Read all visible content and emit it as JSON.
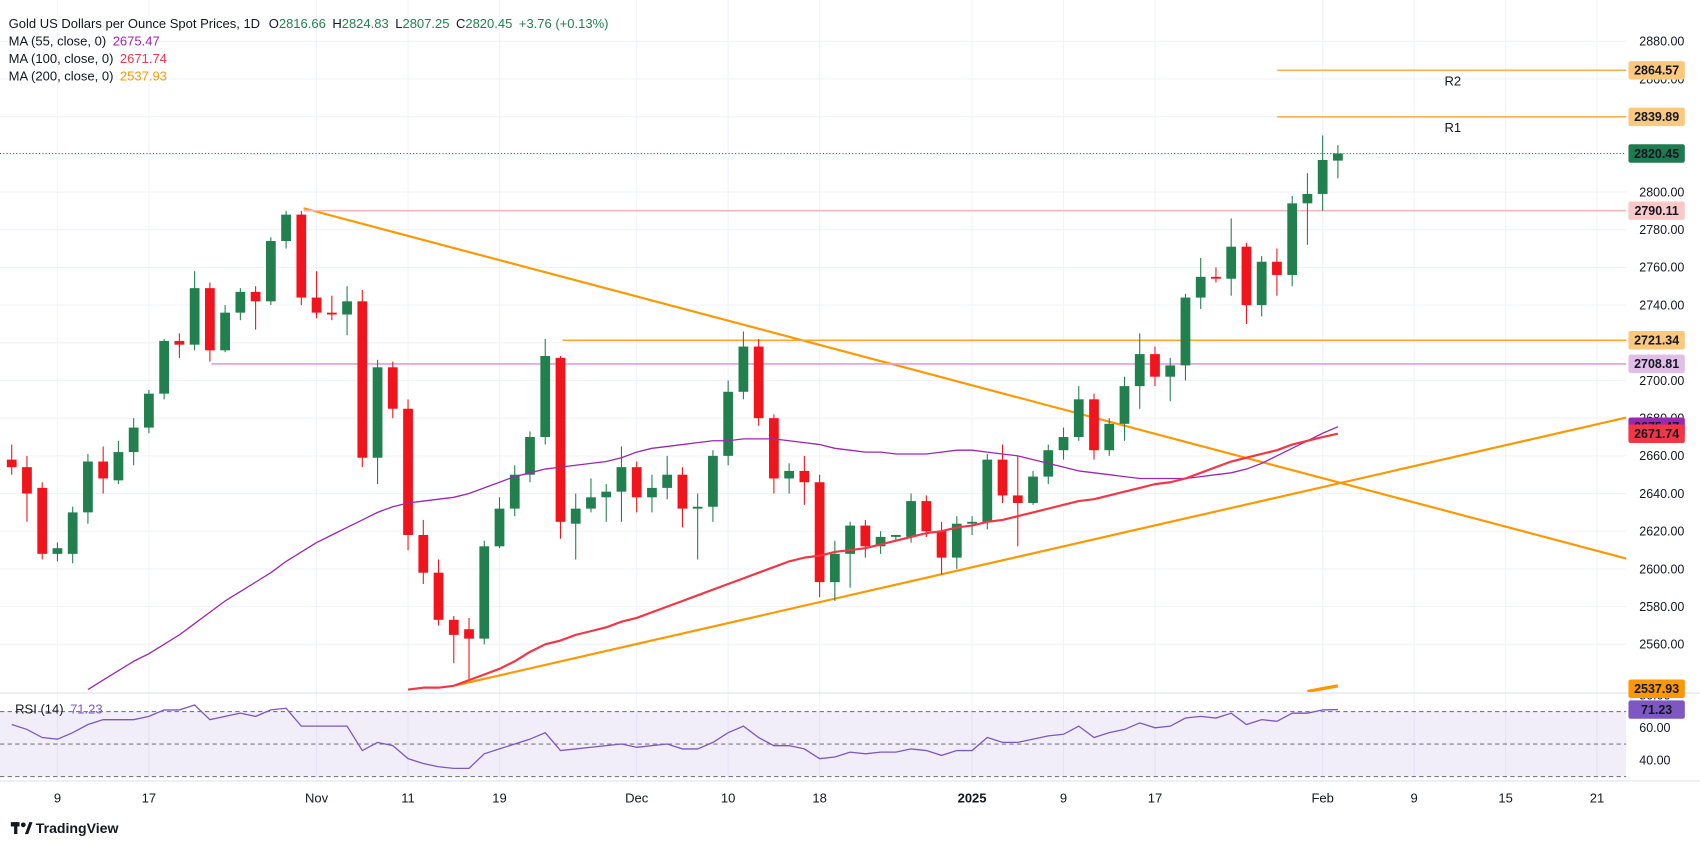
{
  "chart_data": {
    "type": "candlestick",
    "title": "Gold US Dollars per Ounce Spot Prices, 1D",
    "ohlc_labels": [
      "O",
      "H",
      "L",
      "C"
    ],
    "change": "+3.76 (+0.13%)",
    "up_color": "#22804f",
    "down_color": "#f0141c",
    "categories": [
      null,
      null,
      null,
      "9",
      null,
      null,
      null,
      null,
      null,
      "17",
      null,
      null,
      null,
      null,
      null,
      null,
      null,
      null,
      null,
      null,
      "Nov",
      null,
      null,
      null,
      null,
      null,
      "11",
      null,
      null,
      null,
      null,
      null,
      "19",
      null,
      null,
      null,
      null,
      null,
      null,
      null,
      null,
      "Dec",
      null,
      null,
      null,
      null,
      null,
      "10",
      null,
      null,
      null,
      null,
      null,
      "18",
      null,
      null,
      null,
      null,
      null,
      null,
      null,
      null,
      null,
      "2025",
      null,
      null,
      null,
      null,
      null,
      "9",
      null,
      null,
      null,
      null,
      null,
      "17",
      null,
      null,
      null,
      null,
      null,
      null,
      null,
      null,
      null,
      null,
      "Feb",
      null,
      null,
      null,
      null,
      null,
      "9",
      null,
      null,
      null,
      null,
      null,
      "15",
      null,
      null,
      null,
      null,
      null,
      "21",
      null
    ],
    "candles": {
      "open": [
        2658,
        2654,
        2643,
        2608,
        2608,
        2630,
        2657,
        2647,
        2662,
        2675,
        2693,
        2721,
        2719,
        2749,
        2716,
        2736,
        2747,
        2742,
        2774,
        2788,
        2744,
        2736,
        2735,
        2742,
        2659,
        2707,
        2685,
        2618,
        2598,
        2573,
        2568,
        2563,
        2612,
        2632,
        2650,
        2670,
        2712,
        2624,
        2632,
        2638,
        2641,
        2654,
        2638,
        2643,
        2650,
        2632,
        2633,
        2660,
        2694,
        2718,
        2680,
        2648,
        2652,
        2646,
        2593,
        2608,
        2623,
        2612,
        2617,
        2617,
        2636,
        2620,
        2606,
        2624,
        2625,
        2658,
        2639,
        2635,
        2649,
        2663,
        2670,
        2690,
        2663,
        2677,
        2697,
        2714,
        2702,
        2708,
        2744,
        2755,
        2754,
        2771,
        2740,
        2763,
        2756,
        2794,
        2799,
        2816.66,
        null,
        null,
        null,
        null,
        null,
        null,
        null,
        null,
        null,
        null,
        null,
        null,
        null,
        null,
        null,
        null,
        null,
        null
      ],
      "high": [
        2666,
        2660,
        2646,
        2614,
        2633,
        2661,
        2665,
        2668,
        2680,
        2695,
        2722,
        2725,
        2758,
        2752,
        2740,
        2749,
        2750,
        2776,
        2790,
        2790,
        2758,
        2745,
        2750,
        2748,
        2711,
        2710,
        2690,
        2626,
        2605,
        2575,
        2574,
        2615,
        2638,
        2655,
        2673,
        2722,
        2713,
        2640,
        2648,
        2645,
        2665,
        2657,
        2650,
        2660,
        2654,
        2640,
        2663,
        2700,
        2726,
        2722,
        2682,
        2656,
        2660,
        2650,
        2615,
        2625,
        2626,
        2620,
        2618,
        2640,
        2639,
        2625,
        2628,
        2628,
        2661,
        2666,
        2660,
        2652,
        2666,
        2675,
        2697,
        2693,
        2680,
        2702,
        2725,
        2718,
        2712,
        2746,
        2765,
        2760,
        2786,
        2773,
        2766,
        2770,
        2798,
        2810,
        2830,
        2824.83,
        null,
        null,
        null,
        null,
        null,
        null,
        null,
        null,
        null,
        null,
        null,
        null,
        null,
        null,
        null,
        null,
        null,
        null
      ],
      "low": [
        2650,
        2625,
        2605,
        2604,
        2603,
        2624,
        2640,
        2645,
        2655,
        2672,
        2690,
        2712,
        2716,
        2710,
        2715,
        2732,
        2727,
        2740,
        2770,
        2740,
        2733,
        2732,
        2724,
        2654,
        2645,
        2680,
        2610,
        2592,
        2570,
        2550,
        2541,
        2560,
        2611,
        2628,
        2646,
        2666,
        2616,
        2605,
        2630,
        2625,
        2625,
        2630,
        2630,
        2637,
        2622,
        2605,
        2625,
        2655,
        2690,
        2676,
        2640,
        2640,
        2634,
        2585,
        2583,
        2590,
        2606,
        2608,
        2615,
        2614,
        2617,
        2597,
        2600,
        2618,
        2621,
        2635,
        2612,
        2634,
        2645,
        2658,
        2668,
        2658,
        2660,
        2668,
        2685,
        2697,
        2689,
        2700,
        2738,
        2752,
        2745,
        2730,
        2734,
        2745,
        2750,
        2772,
        2790,
        2807.25,
        null,
        null,
        null,
        null,
        null,
        null,
        null,
        null,
        null,
        null,
        null,
        null,
        null,
        null,
        null,
        null,
        null,
        null
      ],
      "close": [
        2654,
        2640,
        2608,
        2611,
        2630,
        2657,
        2648,
        2662,
        2675,
        2693,
        2721,
        2719,
        2749,
        2716,
        2736,
        2747,
        2742,
        2774,
        2788,
        2744,
        2736,
        2735,
        2742,
        2659,
        2707,
        2685,
        2618,
        2598,
        2573,
        2565,
        2563,
        2612,
        2632,
        2650,
        2670,
        2713,
        2625,
        2632,
        2638,
        2641,
        2654,
        2638,
        2643,
        2650,
        2632,
        2633,
        2660,
        2694,
        2718,
        2680,
        2648,
        2652,
        2646,
        2593,
        2608,
        2623,
        2612,
        2617,
        2618,
        2636,
        2620,
        2606,
        2624,
        2625,
        2658,
        2639,
        2635,
        2649,
        2663,
        2670,
        2690,
        2663,
        2677,
        2697,
        2714,
        2702,
        2708,
        2744,
        2755,
        2754,
        2771,
        2740,
        2763,
        2756,
        2794,
        2799,
        2817,
        2820.45,
        null,
        null,
        null,
        null,
        null,
        null,
        null,
        null,
        null,
        null,
        null,
        null,
        null,
        null,
        null,
        null,
        null,
        null
      ]
    },
    "series": [
      {
        "name": "MA (55, close, 0)",
        "color": "#9c27b0",
        "text_color": "#ffffff",
        "width": 1.2,
        "values": [
          null,
          null,
          null,
          null,
          null,
          2536,
          2541,
          2546,
          2551,
          2555,
          2560,
          2565,
          2571,
          2577,
          2583,
          2588,
          2593,
          2598,
          2604,
          2609,
          2614,
          2618,
          2622,
          2626,
          2630,
          2633,
          2635,
          2636,
          2637,
          2638,
          2640,
          2643,
          2646,
          2649,
          2651,
          2653,
          2654,
          2655,
          2656,
          2657,
          2659,
          2662,
          2664,
          2665,
          2666,
          2667,
          2668,
          2668,
          2669,
          2669,
          2669,
          2668,
          2667,
          2666,
          2664,
          2663,
          2662,
          2662,
          2661,
          2661,
          2661,
          2662,
          2663,
          2663,
          2662,
          2661,
          2660,
          2658,
          2656,
          2654,
          2652,
          2651,
          2650,
          2649,
          2648,
          2648,
          2648,
          2648,
          2649,
          2650,
          2651,
          2653,
          2656,
          2660,
          2664,
          2668,
          2672,
          2675.47,
          null,
          null,
          null,
          null,
          null,
          null,
          null,
          null,
          null,
          null,
          null,
          null,
          null,
          null,
          null,
          null,
          null,
          null
        ]
      },
      {
        "name": "MA (100, close, 0)",
        "color": "#f23645",
        "text_color": "#ffffff",
        "width": 2,
        "values": [
          null,
          null,
          null,
          null,
          null,
          null,
          null,
          null,
          null,
          null,
          null,
          null,
          null,
          null,
          null,
          null,
          null,
          null,
          null,
          null,
          null,
          null,
          null,
          null,
          null,
          null,
          2536,
          2537,
          2537,
          2538,
          2541,
          2544,
          2547,
          2551,
          2556,
          2560,
          2562,
          2565,
          2567,
          2569,
          2572,
          2574,
          2577,
          2580,
          2583,
          2586,
          2589,
          2592,
          2595,
          2598,
          2601,
          2604,
          2606,
          2607,
          2609,
          2610,
          2611,
          2613,
          2615,
          2617,
          2619,
          2620,
          2622,
          2623,
          2625,
          2626,
          2628,
          2630,
          2632,
          2634,
          2636,
          2637,
          2639,
          2641,
          2643,
          2645,
          2646,
          2648,
          2651,
          2654,
          2657,
          2659,
          2661,
          2663,
          2666,
          2668,
          2670,
          2671.74,
          null,
          null,
          null,
          null,
          null,
          null,
          null,
          null,
          null,
          null,
          null,
          null,
          null,
          null,
          null,
          null,
          null,
          null
        ]
      },
      {
        "name": "MA (200, close, 0)",
        "color": "#ff9800",
        "text_color": "#131722",
        "width": 3,
        "values": [
          null,
          null,
          null,
          null,
          null,
          null,
          null,
          null,
          null,
          null,
          null,
          null,
          null,
          null,
          null,
          null,
          null,
          null,
          null,
          null,
          null,
          null,
          null,
          null,
          null,
          null,
          null,
          null,
          null,
          null,
          null,
          null,
          null,
          null,
          null,
          null,
          null,
          null,
          null,
          null,
          null,
          null,
          null,
          null,
          null,
          null,
          null,
          null,
          null,
          null,
          null,
          null,
          null,
          null,
          null,
          null,
          null,
          null,
          null,
          null,
          null,
          null,
          null,
          null,
          null,
          null,
          null,
          null,
          null,
          null,
          null,
          null,
          null,
          null,
          null,
          null,
          null,
          null,
          null,
          null,
          null,
          null,
          null,
          null,
          null,
          2535,
          2536.5,
          2537.93,
          null,
          null,
          null,
          null,
          null,
          null,
          null,
          null,
          null,
          null,
          null,
          null,
          null,
          null,
          null,
          null,
          null,
          null
        ]
      }
    ],
    "levels": [
      {
        "label": "R2",
        "value": 2864.57,
        "color": "#f7b24f",
        "badge": "#fcc97c"
      },
      {
        "label": "R1",
        "value": 2839.89,
        "color": "#f7b24f",
        "badge": "#fcc97c"
      },
      {
        "value": 2790.11,
        "color": "#f5b7b7",
        "badge": "#f9c9c9"
      },
      {
        "value": 2721.34,
        "color": "#f7a928",
        "badge": "#fcc97c"
      },
      {
        "value": 2708.81,
        "color": "#dca0e0",
        "badge": "#e1bee7"
      }
    ],
    "current_color": "#1e7b4f",
    "ylim": [
      2534.7,
      2901.9
    ],
    "yticks": [
      {
        "value": 2560,
        "label": "2560.00"
      },
      {
        "value": 2580,
        "label": "2580.00"
      },
      {
        "value": 2600,
        "label": "2600.00"
      },
      {
        "value": 2620,
        "label": "2620.00"
      },
      {
        "value": 2640,
        "label": "2640.00"
      },
      {
        "value": 2660,
        "label": "2660.00"
      },
      {
        "value": 2680,
        "label": "2680.00"
      },
      {
        "value": 2700,
        "label": "2700.00"
      },
      {
        "value": 2720,
        "label": "2720.00"
      },
      {
        "value": 2740,
        "label": "2740.00"
      },
      {
        "value": 2760,
        "label": "2760.00"
      },
      {
        "value": 2780,
        "label": "2780.00"
      },
      {
        "value": 2800,
        "label": "2800.00"
      },
      {
        "value": 2820,
        "label": "2820.00"
      },
      {
        "value": 2840,
        "label": "2840.00"
      },
      {
        "value": 2860,
        "label": "2860.00"
      },
      {
        "value": 2880,
        "label": "2880.00"
      }
    ],
    "grid": true,
    "rsi": {
      "name": "RSI (14)",
      "color": "#7e57c2",
      "ylim": [
        27.3,
        80.7
      ],
      "yticks": [
        {
          "value": 40,
          "label": "40.00"
        },
        {
          "value": 60,
          "label": "60.00"
        },
        {
          "value": 80,
          "label": "80.00"
        }
      ],
      "levels": [
        70,
        50,
        30
      ],
      "values": [
        62,
        59,
        54,
        53,
        57,
        62,
        65,
        65,
        65,
        67,
        71,
        71,
        74,
        65,
        67,
        69,
        67,
        71,
        72,
        61,
        61,
        61,
        61,
        46,
        51,
        49,
        41,
        38,
        36,
        35,
        35,
        44,
        47,
        50,
        53,
        57,
        46,
        47,
        48,
        49,
        50,
        48,
        49,
        50,
        47,
        47,
        51,
        57,
        61,
        54,
        49,
        49,
        47,
        41,
        42,
        45,
        44,
        45,
        45,
        47,
        46,
        43,
        46,
        46,
        54,
        51,
        51,
        53,
        55,
        56,
        61,
        54,
        57,
        59,
        63,
        60,
        61,
        66,
        67,
        66,
        69,
        62,
        65,
        64,
        69,
        69,
        71,
        71.23,
        null,
        null,
        null,
        null,
        null,
        null,
        null,
        null,
        null,
        null,
        null,
        null,
        null,
        null,
        null,
        null,
        null,
        null
      ]
    },
    "branding": "TradingView"
  }
}
